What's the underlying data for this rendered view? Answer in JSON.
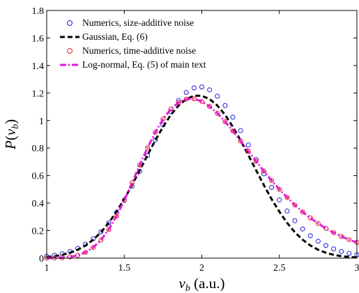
{
  "chart_data": {
    "type": "line",
    "xlabel": "v_b (a.u.)",
    "xlabel_parts": {
      "var": "v",
      "sub": "b",
      "unit": " (a.u.)"
    },
    "ylabel": "P(v_b)",
    "ylabel_parts": {
      "pre": "P(",
      "var": "v",
      "sub": "b",
      "post": ")"
    },
    "xlim": [
      1,
      3
    ],
    "ylim": [
      0,
      1.8
    ],
    "x_ticks": [
      1,
      1.5,
      2,
      2.5,
      3
    ],
    "y_ticks": [
      0,
      0.2,
      0.4,
      0.6,
      0.8,
      1,
      1.2,
      1.4,
      1.6,
      1.8
    ],
    "x_tick_labels": [
      "1",
      "1.5",
      "2",
      "2.5",
      "3"
    ],
    "y_tick_labels": [
      "0",
      "0.2",
      "0.4",
      "0.6",
      "0.8",
      "1",
      "1.2",
      "1.4",
      "1.6",
      "1.8"
    ],
    "grid": false,
    "legend_position": "top-left",
    "x": [
      1.0,
      1.05,
      1.1,
      1.15,
      1.2,
      1.25,
      1.3,
      1.35,
      1.4,
      1.45,
      1.5,
      1.55,
      1.6,
      1.65,
      1.7,
      1.75,
      1.8,
      1.85,
      1.9,
      1.95,
      2.0,
      2.05,
      2.1,
      2.15,
      2.2,
      2.25,
      2.3,
      2.35,
      2.4,
      2.45,
      2.5,
      2.55,
      2.6,
      2.65,
      2.7,
      2.75,
      2.8,
      2.85,
      2.9,
      2.95,
      3.0
    ],
    "series": [
      {
        "name": "Numerics, size-additive noise",
        "style": "markers",
        "color": "#1f1fd6",
        "values": [
          0.013,
          0.021,
          0.032,
          0.048,
          0.071,
          0.101,
          0.141,
          0.192,
          0.256,
          0.333,
          0.422,
          0.522,
          0.631,
          0.745,
          0.859,
          0.968,
          1.065,
          1.145,
          1.204,
          1.237,
          1.244,
          1.223,
          1.177,
          1.109,
          1.024,
          0.927,
          0.823,
          0.717,
          0.613,
          0.514,
          0.423,
          0.342,
          0.272,
          0.212,
          0.163,
          0.123,
          0.092,
          0.067,
          0.048,
          0.034,
          0.024
        ]
      },
      {
        "name": "Gaussian, Eq. (6)",
        "style": "dashed",
        "color": "#000000",
        "values": [
          0.008,
          0.014,
          0.024,
          0.039,
          0.061,
          0.092,
          0.134,
          0.188,
          0.256,
          0.337,
          0.429,
          0.531,
          0.639,
          0.749,
          0.856,
          0.955,
          1.041,
          1.109,
          1.156,
          1.18,
          1.18,
          1.156,
          1.109,
          1.041,
          0.955,
          0.856,
          0.749,
          0.639,
          0.531,
          0.429,
          0.337,
          0.256,
          0.188,
          0.134,
          0.092,
          0.061,
          0.039,
          0.024,
          0.014,
          0.008,
          0.005
        ]
      },
      {
        "name": "Numerics, time-additive noise",
        "style": "markers",
        "color": "#e0201f",
        "values": [
          0.0,
          0.001,
          0.003,
          0.009,
          0.02,
          0.042,
          0.078,
          0.132,
          0.208,
          0.305,
          0.419,
          0.546,
          0.677,
          0.802,
          0.915,
          1.01,
          1.083,
          1.131,
          1.156,
          1.158,
          1.139,
          1.103,
          1.053,
          0.992,
          0.924,
          0.852,
          0.778,
          0.704,
          0.633,
          0.564,
          0.5,
          0.441,
          0.386,
          0.336,
          0.292,
          0.252,
          0.216,
          0.185,
          0.158,
          0.134,
          0.114
        ]
      },
      {
        "name": "Log-normal, Eq. (5) of main text",
        "style": "dashdot",
        "color": "#e619d9",
        "values": [
          0.0,
          0.001,
          0.003,
          0.009,
          0.02,
          0.042,
          0.078,
          0.132,
          0.208,
          0.305,
          0.419,
          0.546,
          0.677,
          0.802,
          0.915,
          1.01,
          1.083,
          1.131,
          1.156,
          1.158,
          1.139,
          1.103,
          1.053,
          0.992,
          0.924,
          0.852,
          0.778,
          0.704,
          0.633,
          0.564,
          0.5,
          0.441,
          0.386,
          0.336,
          0.292,
          0.252,
          0.216,
          0.185,
          0.158,
          0.134,
          0.114
        ]
      }
    ]
  }
}
